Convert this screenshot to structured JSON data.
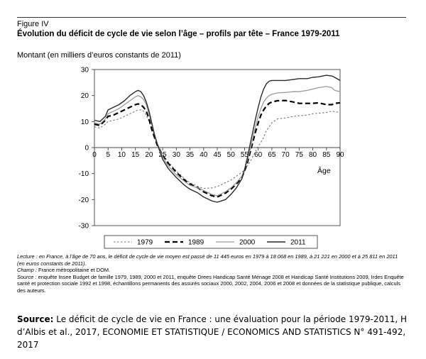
{
  "figure": {
    "label": "Figure IV",
    "title": "Évolution du déficit de cycle de vie selon l’âge – profils par tête – France 1979-2011",
    "unit": "Montant (en milliers d’euros constants de 2011)"
  },
  "chart_data": {
    "type": "line",
    "xlabel": "Âge",
    "ylabel": "",
    "xlim": [
      0,
      90
    ],
    "ylim": [
      -30,
      30
    ],
    "x_ticks": [
      0,
      5,
      10,
      15,
      20,
      25,
      30,
      35,
      40,
      45,
      50,
      55,
      60,
      65,
      70,
      75,
      80,
      85,
      90
    ],
    "y_ticks": [
      30,
      20,
      10,
      0,
      -10,
      -20,
      -30
    ],
    "legend_position": "bottom",
    "x": [
      0,
      2,
      4,
      5,
      7,
      9,
      11,
      13,
      15,
      16,
      17,
      18,
      19,
      20,
      21,
      22,
      23,
      24,
      25,
      27,
      30,
      33,
      35,
      38,
      40,
      43,
      45,
      48,
      50,
      52,
      54,
      55,
      56,
      57,
      58,
      59,
      60,
      61,
      62,
      63,
      64,
      65,
      67,
      70,
      73,
      75,
      78,
      80,
      82,
      85,
      87,
      88,
      90
    ],
    "series": [
      {
        "name": "1979",
        "style": "dotted",
        "values": [
          8.0,
          7.5,
          9.0,
          10.0,
          10.5,
          11.0,
          12.0,
          13.0,
          14.0,
          14.5,
          14.5,
          14.0,
          12.5,
          10.0,
          7.0,
          4.0,
          1.5,
          -0.5,
          -2.5,
          -5.5,
          -9.0,
          -12.0,
          -13.5,
          -15.0,
          -15.7,
          -15.5,
          -15.0,
          -13.5,
          -12.5,
          -11.0,
          -9.5,
          -8.5,
          -7.0,
          -5.5,
          -3.5,
          -1.5,
          0.5,
          2.0,
          4.0,
          6.5,
          8.0,
          9.5,
          11.0,
          11.4,
          12.0,
          12.2,
          12.5,
          13.0,
          13.2,
          13.5,
          14.0,
          13.8,
          13.5
        ]
      },
      {
        "name": "1989",
        "style": "dashed",
        "values": [
          9.0,
          8.5,
          10.5,
          12.0,
          12.5,
          13.5,
          14.5,
          15.5,
          16.5,
          16.8,
          16.5,
          15.5,
          14.0,
          11.0,
          7.0,
          4.0,
          1.0,
          -1.0,
          -3.0,
          -6.0,
          -9.5,
          -12.5,
          -14.0,
          -15.5,
          -17.0,
          -18.5,
          -19.0,
          -17.5,
          -16.0,
          -14.0,
          -11.5,
          -9.0,
          -6.0,
          -2.0,
          2.0,
          6.0,
          9.5,
          12.5,
          14.5,
          16.0,
          17.0,
          17.5,
          18.0,
          18.1,
          17.5,
          17.0,
          17.0,
          17.0,
          17.2,
          16.5,
          16.5,
          17.0,
          17.2
        ]
      },
      {
        "name": "2000",
        "style": "solid-light",
        "values": [
          9.5,
          9.0,
          11.0,
          13.0,
          14.0,
          15.0,
          16.5,
          18.0,
          19.5,
          20.0,
          19.5,
          18.5,
          16.5,
          13.0,
          9.0,
          5.0,
          1.5,
          -1.0,
          -3.5,
          -7.0,
          -10.5,
          -13.0,
          -14.5,
          -15.5,
          -16.5,
          -18.0,
          -18.5,
          -17.0,
          -15.5,
          -13.5,
          -11.0,
          -8.5,
          -5.0,
          -1.0,
          3.5,
          8.0,
          12.0,
          15.0,
          17.5,
          19.0,
          20.0,
          20.5,
          21.0,
          21.2,
          21.5,
          21.5,
          22.0,
          22.5,
          23.0,
          23.5,
          23.0,
          22.0,
          21.5
        ]
      },
      {
        "name": "2011",
        "style": "solid",
        "values": [
          10.5,
          10.0,
          12.0,
          14.5,
          15.5,
          16.5,
          18.0,
          20.0,
          21.5,
          22.0,
          21.5,
          20.0,
          17.5,
          14.0,
          9.5,
          5.0,
          1.5,
          -1.5,
          -4.5,
          -8.0,
          -11.5,
          -14.5,
          -16.0,
          -17.5,
          -19.0,
          -20.5,
          -21.0,
          -20.0,
          -18.0,
          -15.5,
          -12.0,
          -8.5,
          -4.0,
          1.0,
          6.0,
          11.0,
          15.5,
          19.5,
          22.5,
          24.5,
          25.5,
          25.8,
          25.8,
          25.8,
          26.2,
          26.5,
          26.5,
          27.0,
          27.2,
          27.8,
          27.5,
          27.0,
          25.8
        ]
      }
    ]
  },
  "notes": {
    "lecture_label": "Lecture :",
    "lecture": " en France, à l’âge de 70 ans, le déficit de cycle de vie moyen est passé de 11 445 euros en 1979 à 18 068 en 1989, à 21 221 en 2000 et à 25 811 en 2011 (en euros constants de 2011).",
    "champ_label": "Champ :",
    "champ": " France métropolitaine et DOM.",
    "source_label": "Source :",
    "source": " enquête Insee Budget de famille 1979, 1989, 2000 et 2011, enquête Drees Handicap Santé Ménage 2008 et Handicap Santé Institutions 2009, Irdes Enquête santé et protection sociale 1992 et 1998, échantillons permanents des assurés sociaux 2000, 2002, 2004, 2006 et 2008 et données de la statistique publique, calculs des auteurs."
  },
  "citation": {
    "label": "Source:",
    "text": " Le déficit de cycle de vie en France : une évaluation pour la période 1979-2011, H d’Albis et al., 2017, ECONOMIE ET STATISTIQUE / ECONOMICS AND STATISTICS N° 491-492, 2017"
  }
}
